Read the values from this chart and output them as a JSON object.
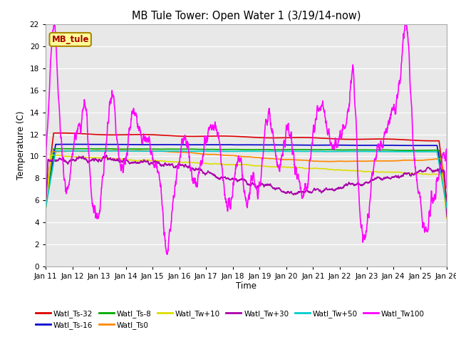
{
  "title": "MB Tule Tower: Open Water 1 (3/19/14-now)",
  "xlabel": "Time",
  "ylabel": "Temperature (C)",
  "xlim": [
    0,
    15
  ],
  "ylim": [
    0,
    22
  ],
  "yticks": [
    0,
    2,
    4,
    6,
    8,
    10,
    12,
    14,
    16,
    18,
    20,
    22
  ],
  "xtick_labels": [
    "Jan 11",
    "Jan 12",
    "Jan 13",
    "Jan 14",
    "Jan 15",
    "Jan 16",
    "Jan 17",
    "Jan 18",
    "Jan 19",
    "Jan 20",
    "Jan 21",
    "Jan 22",
    "Jan 23",
    "Jan 24",
    "Jan 25",
    "Jan 26"
  ],
  "series_order": [
    "Watl_Ts-32",
    "Watl_Ts-16",
    "Watl_Ts-8",
    "Watl_Ts0",
    "Watl_Tw+10",
    "Watl_Tw+30",
    "Watl_Tw+50",
    "Watl_Tw100"
  ],
  "series": {
    "Watl_Ts-32": {
      "color": "#dd0000",
      "lw": 1.2
    },
    "Watl_Ts-16": {
      "color": "#0000cc",
      "lw": 1.2
    },
    "Watl_Ts-8": {
      "color": "#00aa00",
      "lw": 1.2
    },
    "Watl_Ts0": {
      "color": "#ff8800",
      "lw": 1.2
    },
    "Watl_Tw+10": {
      "color": "#dddd00",
      "lw": 1.2
    },
    "Watl_Tw+30": {
      "color": "#aa00aa",
      "lw": 1.2
    },
    "Watl_Tw+50": {
      "color": "#00cccc",
      "lw": 1.2
    },
    "Watl_Tw100": {
      "color": "#ff00ff",
      "lw": 1.2
    }
  },
  "legend_box_color": "#ffff99",
  "legend_box_border": "#aa8800",
  "legend_text": "MB_tule",
  "bg_color": "#ffffff",
  "plot_bg_color": "#e8e8e8",
  "figsize": [
    6.4,
    4.8
  ],
  "dpi": 100
}
